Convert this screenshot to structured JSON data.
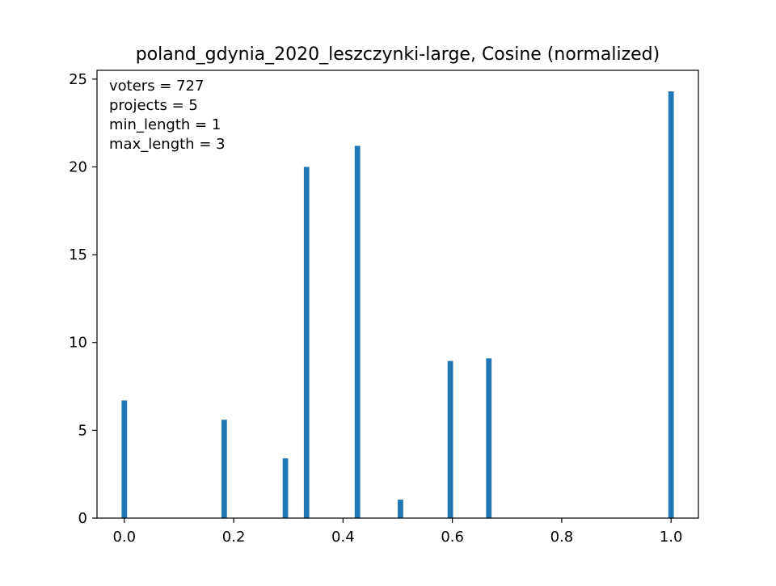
{
  "chart_data": {
    "type": "bar",
    "title": "poland_gdynia_2020_leszczynki-large, Cosine (normalized)",
    "xlabel": "",
    "ylabel": "",
    "xlim": [
      -0.05,
      1.05
    ],
    "ylim": [
      0,
      25.5
    ],
    "xticks": [
      0.0,
      0.2,
      0.4,
      0.6,
      0.8,
      1.0
    ],
    "xtick_labels": [
      "0.0",
      "0.2",
      "0.4",
      "0.6",
      "0.8",
      "1.0"
    ],
    "yticks": [
      0,
      5,
      10,
      15,
      20,
      25
    ],
    "ytick_labels": [
      "0",
      "5",
      "10",
      "15",
      "20",
      "25"
    ],
    "bar_width": 0.01,
    "bar_color": "#1f77b4",
    "grid": false,
    "bars": [
      {
        "x": 0.0,
        "value": 6.7
      },
      {
        "x": 0.1826,
        "value": 5.6
      },
      {
        "x": 0.2946,
        "value": 3.4
      },
      {
        "x": 0.3333,
        "value": 20.0
      },
      {
        "x": 0.4264,
        "value": 21.2
      },
      {
        "x": 0.5051,
        "value": 1.05
      },
      {
        "x": 0.5963,
        "value": 8.95
      },
      {
        "x": 0.6667,
        "value": 9.1
      },
      {
        "x": 1.0,
        "value": 24.3
      }
    ],
    "annotations": [
      "voters = 727",
      "projects = 5",
      "min_length = 1",
      "max_length = 3"
    ]
  }
}
